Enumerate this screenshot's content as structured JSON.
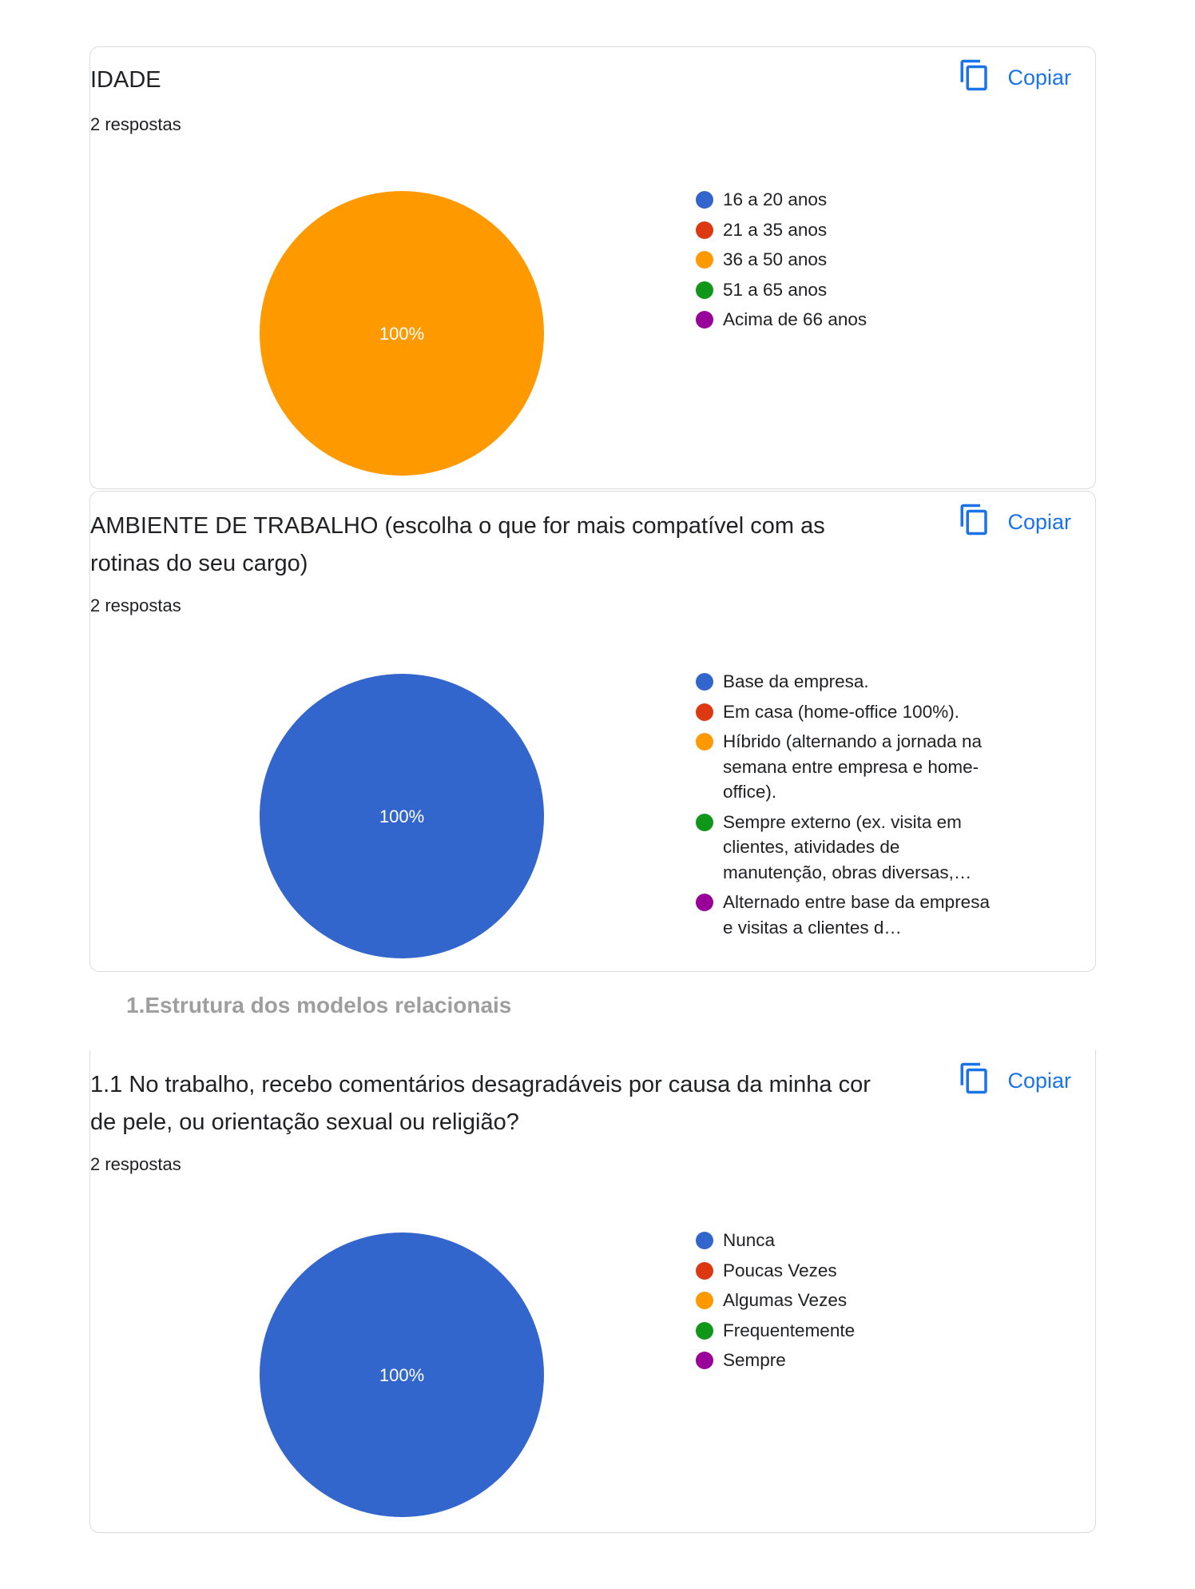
{
  "copy_label": "Copiar",
  "section_title": "1.Estrutura dos modelos relacionais",
  "colors": {
    "blue": "#3366cc",
    "red": "#dc3912",
    "orange": "#ff9900",
    "green": "#109618",
    "purple": "#990099",
    "accent": "#1a73e8"
  },
  "cards": [
    {
      "title": "IDADE",
      "responses": "2 respostas"
    },
    {
      "title": "AMBIENTE DE TRABALHO (escolha o que for mais compatível com as rotinas do seu cargo)",
      "responses": "2 respostas"
    },
    {
      "title": "1.1 No trabalho, recebo comentários desagradáveis por causa da minha cor de pele, ou orientação sexual ou religião?",
      "responses": "2 respostas"
    }
  ],
  "chart_data": [
    {
      "type": "pie",
      "title": "IDADE",
      "categories": [
        "16 a 20 anos",
        "21 a 35 anos",
        "36 a 50 anos",
        "51 a 65 anos",
        "Acima de 66 anos"
      ],
      "values": [
        0,
        0,
        100,
        0,
        0
      ],
      "colors": [
        "#3366cc",
        "#dc3912",
        "#ff9900",
        "#109618",
        "#990099"
      ],
      "slice_labels": [
        "",
        "",
        "100%",
        "",
        ""
      ],
      "legend": "right"
    },
    {
      "type": "pie",
      "title": "AMBIENTE DE TRABALHO (escolha o que for mais compatível com as rotinas do seu cargo)",
      "categories": [
        "Base da empresa.",
        "Em casa (home-office 100%).",
        "Híbrido (alternando a jornada na semana entre empresa e home-office).",
        "Sempre externo (ex. visita em clientes, atividades de manutenção, obras diversas,…",
        "Alternado entre base da empresa e visitas a clientes d…"
      ],
      "values": [
        100,
        0,
        0,
        0,
        0
      ],
      "colors": [
        "#3366cc",
        "#dc3912",
        "#ff9900",
        "#109618",
        "#990099"
      ],
      "slice_labels": [
        "100%",
        "",
        "",
        "",
        ""
      ],
      "legend": "right"
    },
    {
      "type": "pie",
      "title": "1.1 No trabalho, recebo comentários desagradáveis por causa da minha cor de pele, ou orientação sexual ou religião?",
      "categories": [
        "Nunca",
        "Poucas Vezes",
        "Algumas Vezes",
        "Frequentemente",
        "Sempre"
      ],
      "values": [
        100,
        0,
        0,
        0,
        0
      ],
      "colors": [
        "#3366cc",
        "#dc3912",
        "#ff9900",
        "#109618",
        "#990099"
      ],
      "slice_labels": [
        "100%",
        "",
        "",
        "",
        ""
      ],
      "legend": "right"
    }
  ]
}
